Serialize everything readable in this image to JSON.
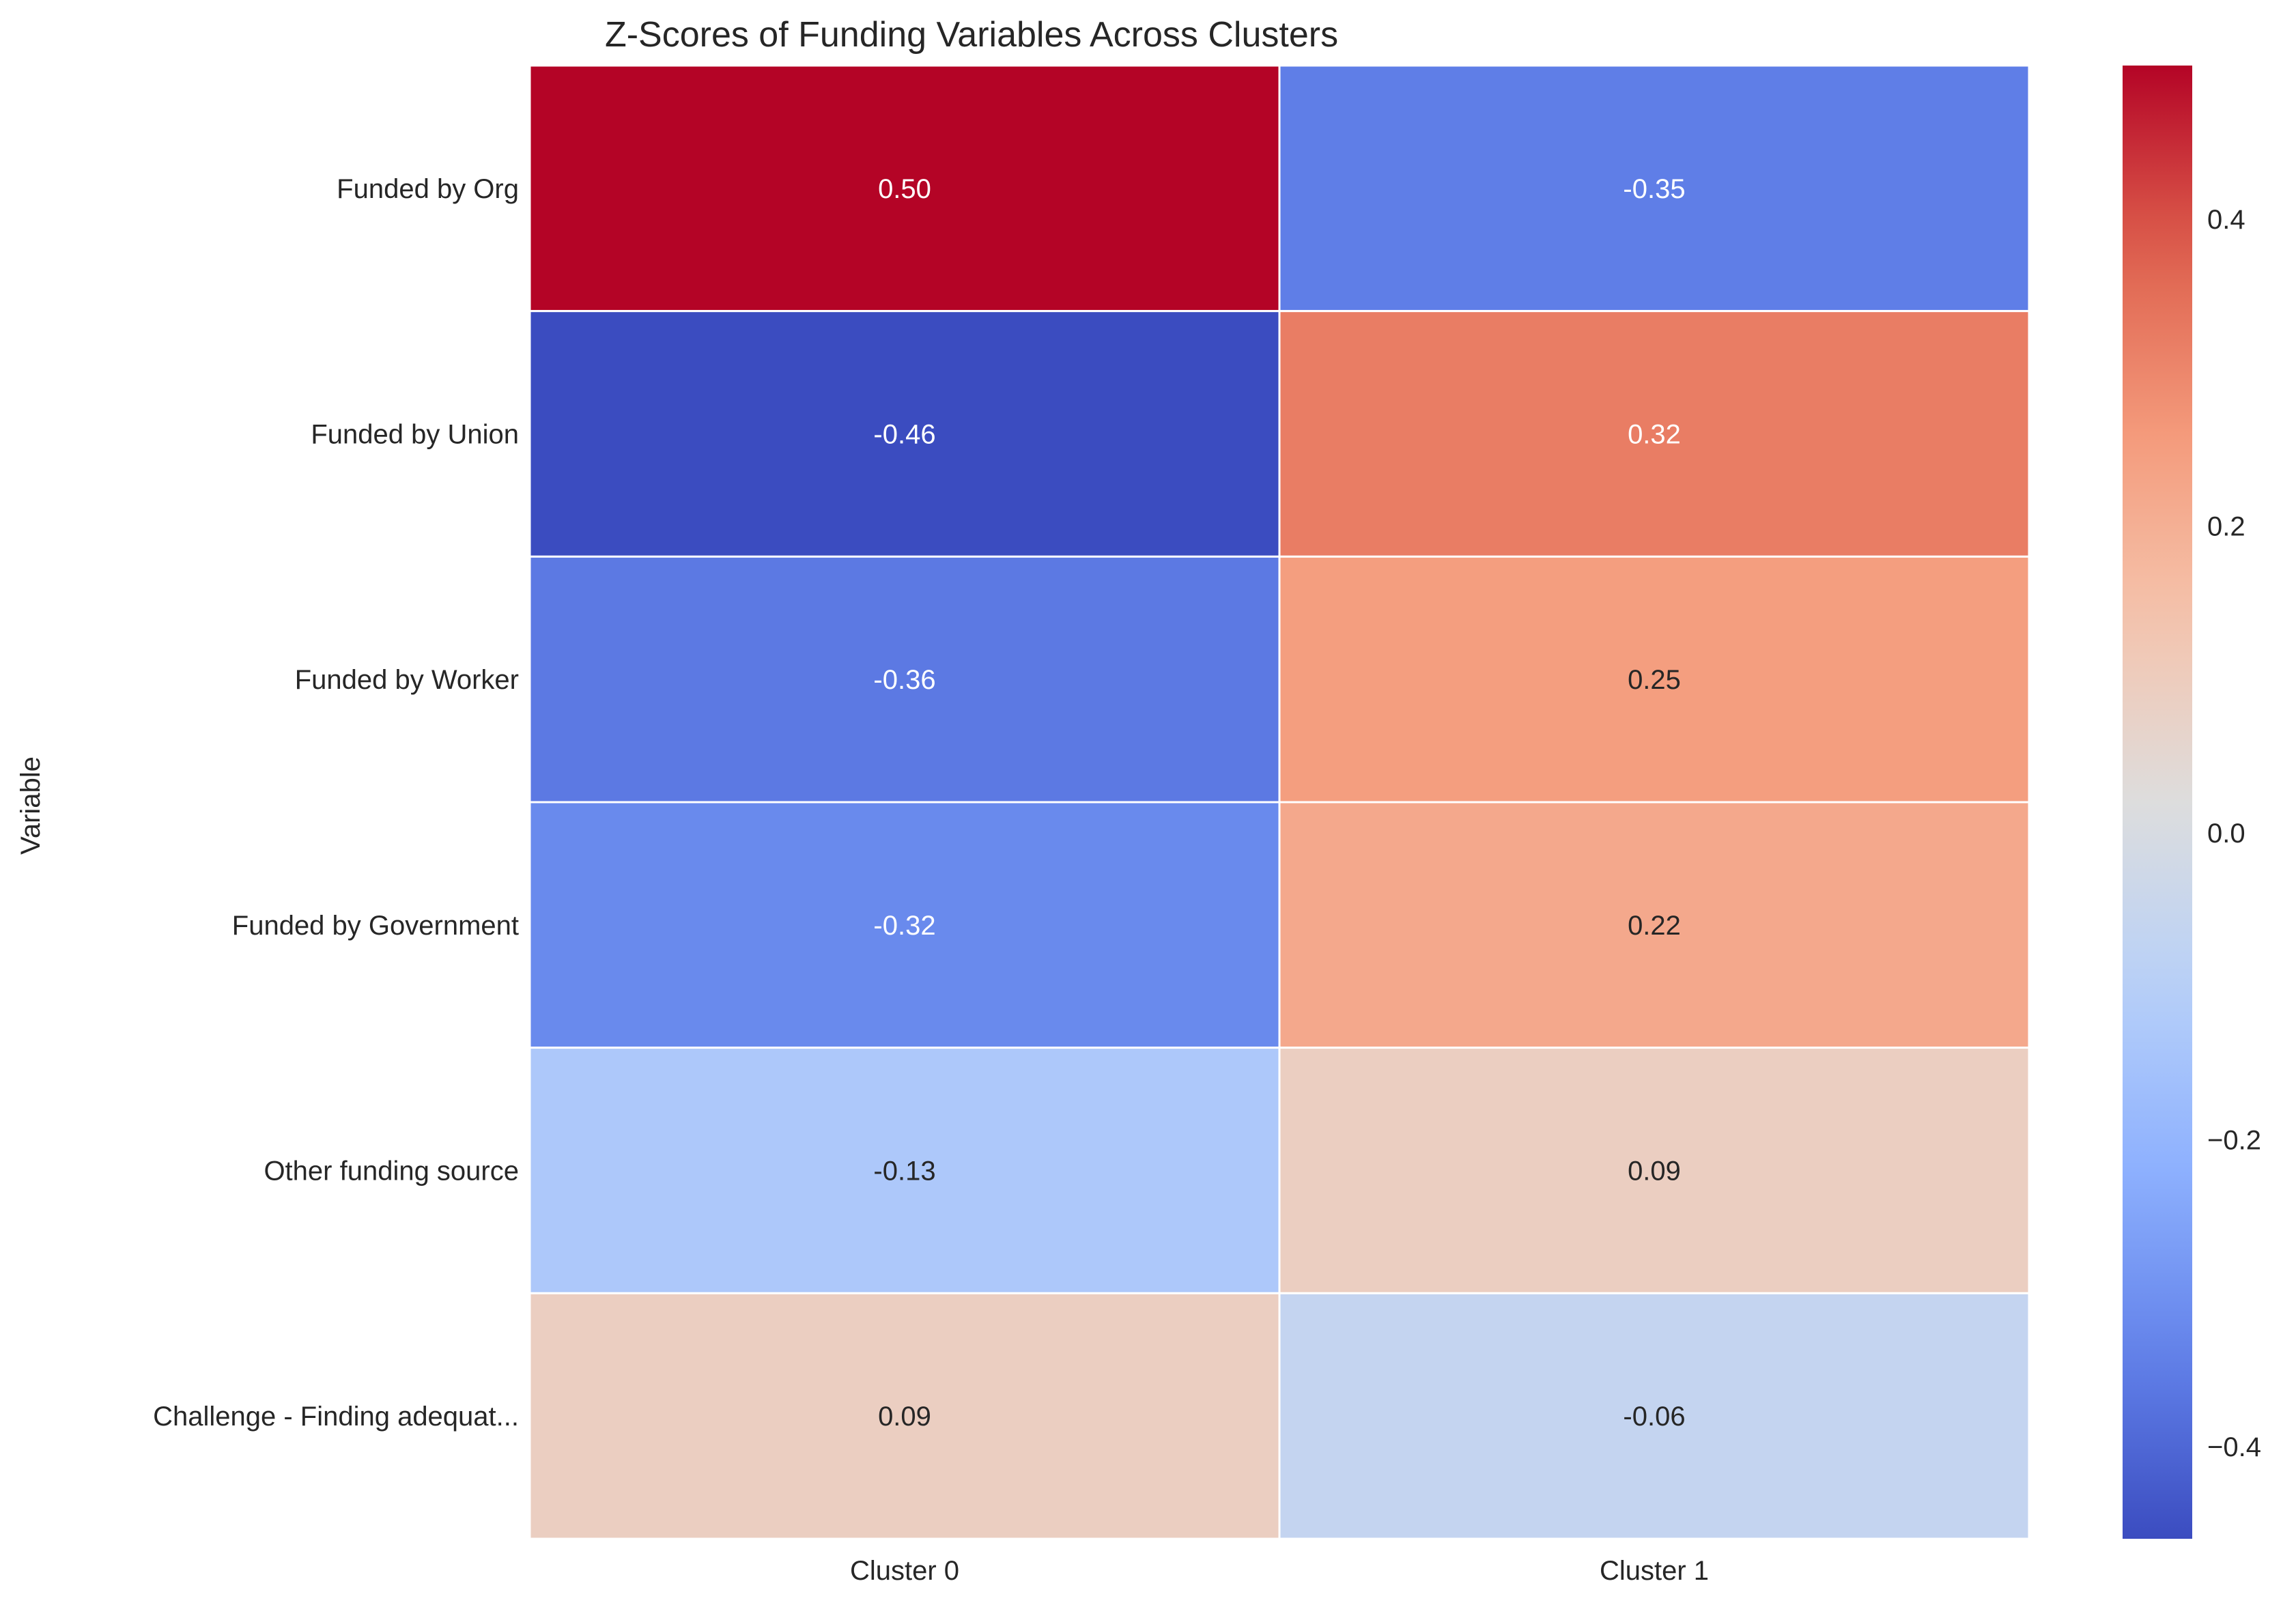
{
  "chart_data": {
    "type": "heatmap",
    "title": "Z-Scores of Funding Variables Across Clusters",
    "xlabel": "",
    "ylabel": "Variable",
    "columns": [
      "Cluster 0",
      "Cluster 1"
    ],
    "rows": [
      "Funded by Org",
      "Funded by Union",
      "Funded by Worker",
      "Funded by Government",
      "Other funding source",
      "Challenge - Finding adequat..."
    ],
    "values": [
      [
        0.5,
        -0.35
      ],
      [
        -0.46,
        0.32
      ],
      [
        -0.36,
        0.25
      ],
      [
        -0.32,
        0.22
      ],
      [
        -0.13,
        0.09
      ],
      [
        0.09,
        -0.06
      ]
    ],
    "value_format": "0.00",
    "colormap": "coolwarm",
    "colorbar": {
      "vmin": -0.46,
      "vmax": 0.5,
      "ticks": [
        0.4,
        0.2,
        0.0,
        -0.2,
        -0.4
      ],
      "tick_labels": [
        "0.4",
        "0.2",
        "0.0",
        "−0.2",
        "−0.4"
      ],
      "position": "right"
    },
    "cell_border_color": "#ffffff",
    "grid": false
  }
}
